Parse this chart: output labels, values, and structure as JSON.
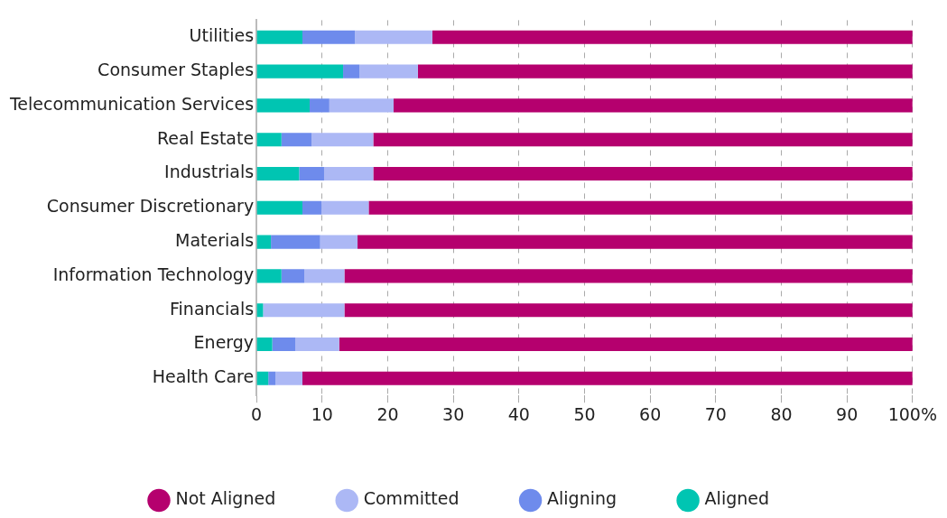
{
  "chart_data": {
    "type": "bar",
    "orientation": "horizontal",
    "stacked": true,
    "categories": [
      "Utilities",
      "Consumer Staples",
      "Telecommunication Services",
      "Real Estate",
      "Industrials",
      "Consumer Discretionary",
      "Materials",
      "Information Technology",
      "Financials",
      "Energy",
      "Health Care"
    ],
    "series": [
      {
        "name": "Aligned",
        "color": "#00c5b2",
        "values": [
          7.0,
          13.2,
          8.1,
          3.8,
          6.5,
          7.0,
          2.2,
          3.8,
          1.0,
          2.4,
          1.8
        ]
      },
      {
        "name": "Aligning",
        "color": "#6e8bec",
        "values": [
          8.0,
          2.5,
          3.0,
          4.6,
          3.8,
          2.9,
          7.5,
          3.5,
          0,
          3.5,
          1.1
        ]
      },
      {
        "name": "Committed",
        "color": "#acb8f5",
        "values": [
          11.8,
          8.9,
          9.8,
          9.4,
          7.5,
          7.2,
          5.7,
          6.1,
          12.4,
          6.7,
          4.1
        ]
      },
      {
        "name": "Not Aligned",
        "color": "#b5006e",
        "values": [
          73.2,
          75.4,
          79.1,
          82.2,
          82.2,
          82.9,
          84.6,
          86.6,
          86.6,
          87.4,
          93.0
        ]
      }
    ],
    "xlim": [
      0,
      100
    ],
    "xticks": [
      0,
      10,
      20,
      30,
      40,
      50,
      60,
      70,
      80,
      90,
      {
        "value": 100,
        "label": "100%"
      }
    ],
    "grid": "x",
    "legend": "bottom"
  }
}
